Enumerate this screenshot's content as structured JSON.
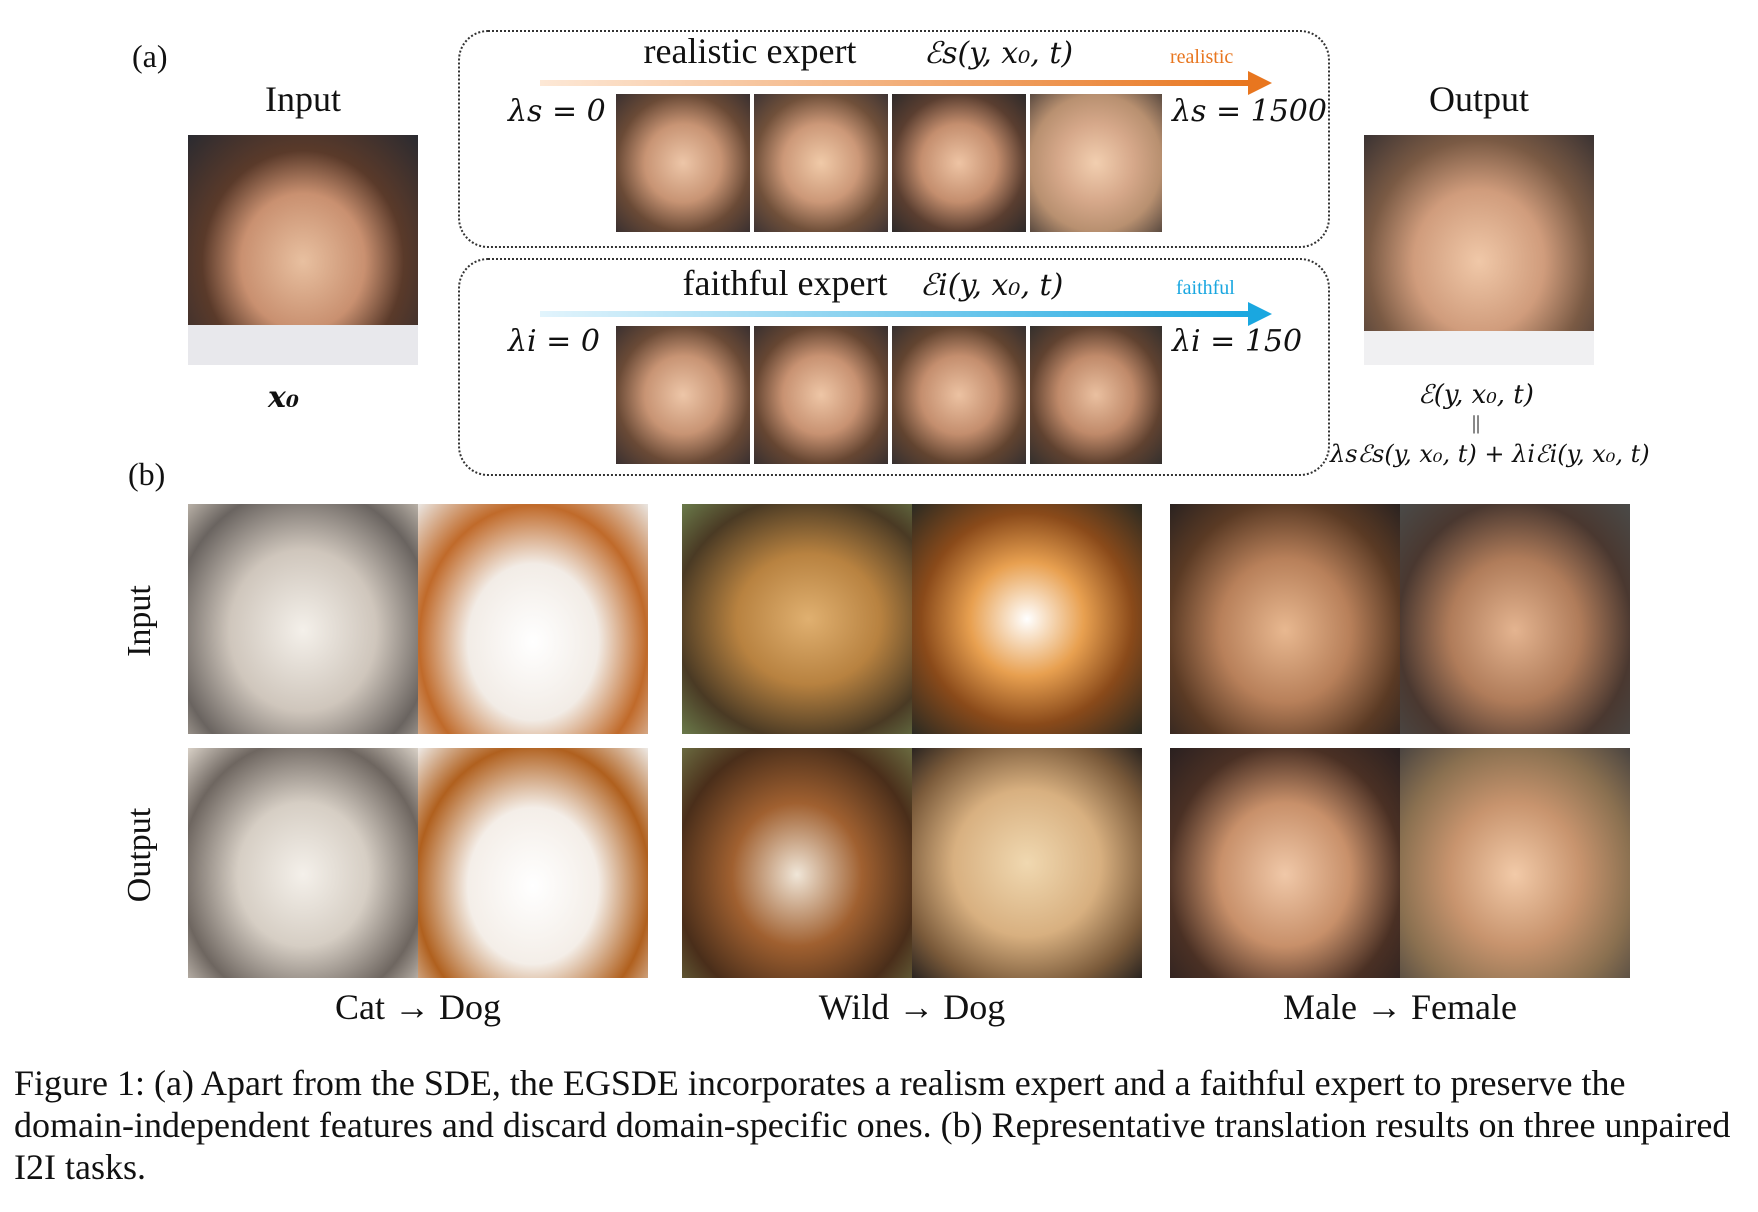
{
  "label_a": "(a)",
  "label_b": "(b)",
  "input_title": "Input",
  "output_title": "Output",
  "input_symbol": "x₀",
  "realistic": {
    "title": "realistic expert",
    "formula": "ℰs(y, x₀, t)",
    "arrow_label": "realistic",
    "left_value": "λs = 0",
    "right_value": "λs = 1500",
    "color": "#e8761f"
  },
  "faithful": {
    "title": "faithful expert",
    "formula": "ℰi(y, x₀, t)",
    "arrow_label": "faithful",
    "left_value": "λi = 0",
    "right_value": "λi = 150",
    "color": "#1aa7e0"
  },
  "output_formula_line1": "ℰ(y, x₀, t)",
  "output_formula_eq": "||",
  "output_formula_line2": "λsℰs(y, x₀, t) + λiℰi(y, x₀, t)",
  "row_labels": [
    "Input",
    "Output"
  ],
  "tasks": [
    "Cat → Dog",
    "Wild → Dog",
    "Male → Female"
  ],
  "caption": "Figure 1: (a) Apart from the SDE, the EGSDE incorporates a realism expert and a faithful expert to preserve the domain-independent features and discard domain-specific ones. (b) Representative translation results on three unpaired I2I tasks."
}
